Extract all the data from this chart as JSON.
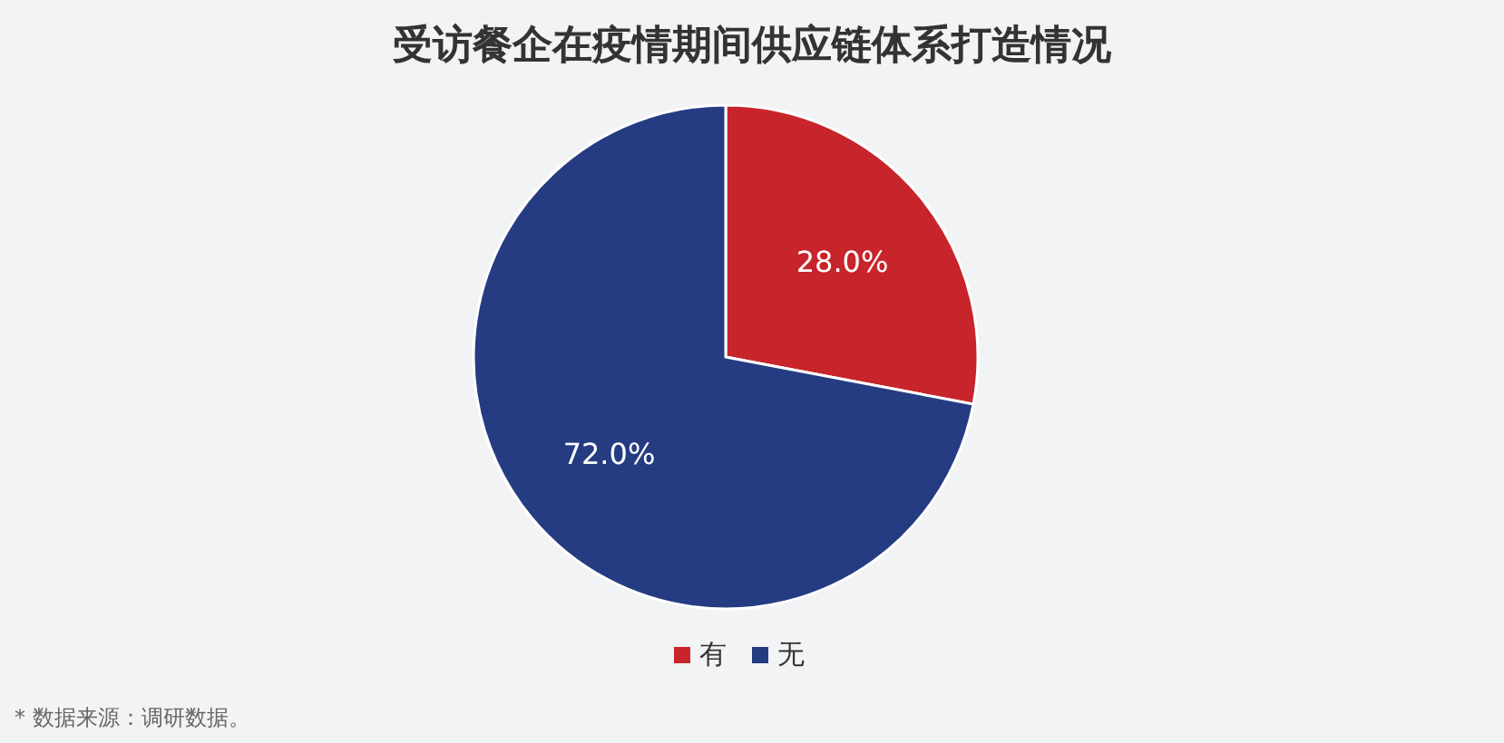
{
  "chart_data": {
    "type": "pie",
    "title": "受访餐企在疫情期间供应链体系打造情况",
    "categories": [
      "有",
      "无"
    ],
    "values": [
      28.0,
      72.0
    ],
    "value_labels": [
      "28.0%",
      "72.0%"
    ],
    "colors": [
      "#c8242b",
      "#253c82"
    ],
    "legend": "bottom",
    "annotations": [
      "* 数据来源：调研数据。"
    ]
  }
}
